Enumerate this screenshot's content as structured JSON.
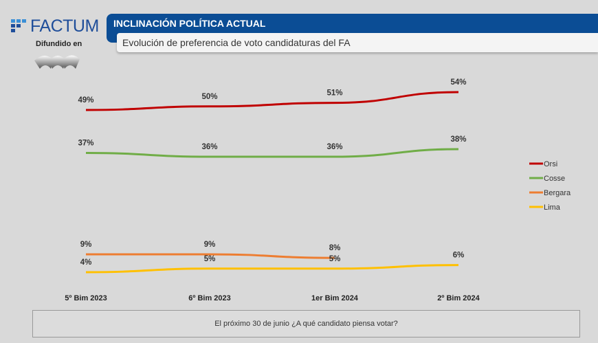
{
  "brand": {
    "logo": "FACTUM",
    "disseminated": "Difundido en"
  },
  "header": {
    "title": "INCLINACIÓN POLÍTICA ACTUAL",
    "subtitle": "Evolución de preferencia de voto candidaturas del FA"
  },
  "question": "El próximo 30 de junio ¿A qué candidato piensa votar?",
  "chart_data": {
    "type": "line",
    "categories": [
      "5º Bim 2023",
      "6º Bim 2023",
      "1er Bim 2024",
      "2º Bim 2024"
    ],
    "legend_position": "right",
    "grid": false,
    "series": [
      {
        "name": "Orsi",
        "color": "#c00000",
        "values": [
          49,
          50,
          51,
          54
        ]
      },
      {
        "name": "Cosse",
        "color": "#70ad47",
        "values": [
          37,
          36,
          36,
          38
        ]
      },
      {
        "name": "Bergara",
        "color": "#ed7d31",
        "values": [
          9,
          9,
          8,
          null
        ]
      },
      {
        "name": "Lima",
        "color": "#ffc000",
        "values": [
          4,
          5,
          5,
          6
        ]
      }
    ]
  }
}
